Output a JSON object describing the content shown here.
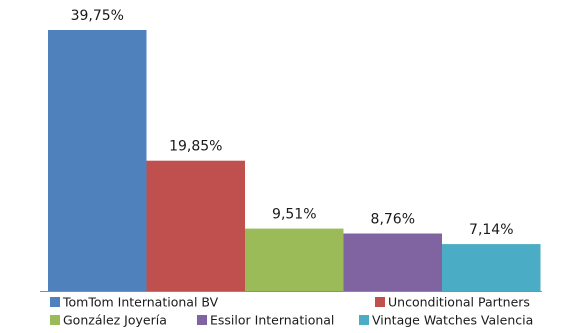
{
  "chart_data": {
    "type": "bar",
    "title": "",
    "xlabel": "",
    "ylabel": "",
    "ylim": [
      0,
      39.75
    ],
    "grid": false,
    "legend_position": "bottom",
    "categories": [
      "TomTom International BV",
      "Unconditional Partners",
      "González Joyería",
      "Essilor International",
      "Vintage Watches Valencia"
    ],
    "values": [
      39.75,
      19.85,
      9.51,
      8.76,
      7.14
    ],
    "value_labels": [
      "39,75%",
      "19,85%",
      "9,51%",
      "8,76%",
      "7,14%"
    ],
    "colors": [
      "#4f81bd",
      "#c0504d",
      "#9bbb59",
      "#8064a2",
      "#4bacc6"
    ]
  }
}
